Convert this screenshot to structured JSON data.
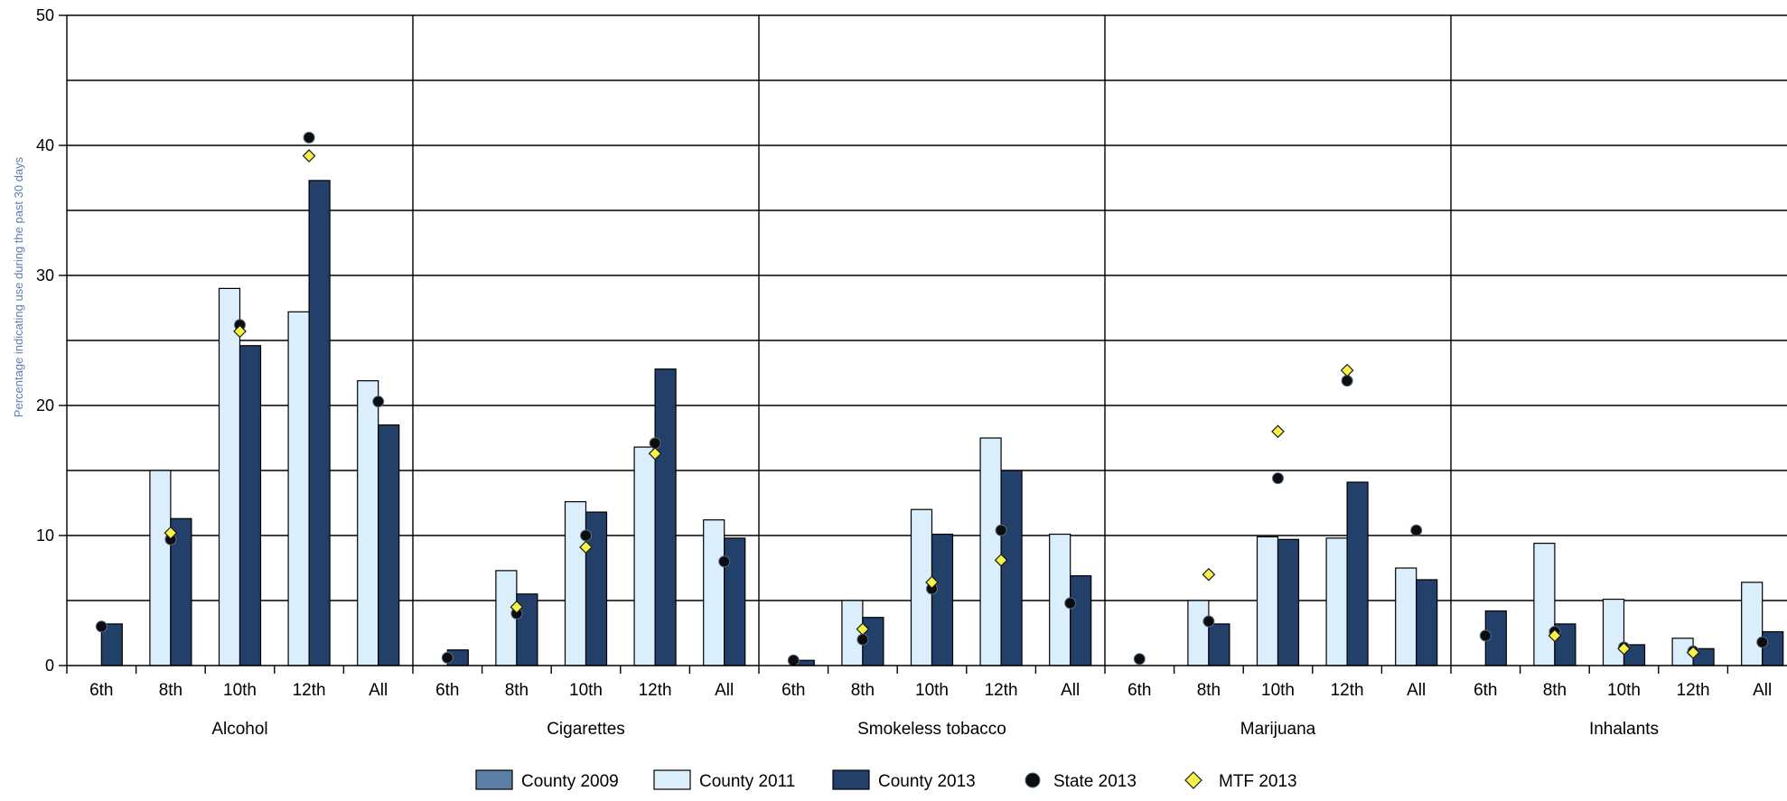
{
  "colors": {
    "county_2009": "#5b7fa6",
    "county_2011": "#dbeefb",
    "county_2013": "#22406a",
    "state_2013": "#0d0d0d",
    "mtf_2013": "#f7f24a",
    "ylabel": "#5b7fb5",
    "grid": "#000000"
  },
  "chart_data": {
    "type": "bar",
    "ylabel": "Percentage indicating use during the past 30 days",
    "ylim": [
      0,
      50
    ],
    "yticks": [
      0,
      10,
      20,
      30,
      40,
      50
    ],
    "minor_gridlines": [
      5,
      15,
      25,
      35,
      45
    ],
    "grid": true,
    "legend_position": "bottom-center",
    "grade_labels": [
      "6th",
      "8th",
      "10th",
      "12th",
      "All"
    ],
    "groups": [
      {
        "name": "Alcohol",
        "county_2011": [
          null,
          15.0,
          29.0,
          27.2,
          21.9
        ],
        "county_2013": [
          3.2,
          11.3,
          24.6,
          37.3,
          18.5
        ],
        "state_2013": [
          3.0,
          9.7,
          26.2,
          40.6,
          20.3
        ],
        "mtf_2013": [
          null,
          10.2,
          25.7,
          39.2,
          null
        ]
      },
      {
        "name": "Cigarettes",
        "county_2011": [
          null,
          7.3,
          12.6,
          16.8,
          11.2
        ],
        "county_2013": [
          1.2,
          5.5,
          11.8,
          22.8,
          9.8
        ],
        "state_2013": [
          0.6,
          4.0,
          10.0,
          17.1,
          8.0
        ],
        "mtf_2013": [
          null,
          4.5,
          9.1,
          16.3,
          null
        ]
      },
      {
        "name": "Smokeless tobacco",
        "county_2011": [
          null,
          5.0,
          12.0,
          17.5,
          10.1
        ],
        "county_2013": [
          0.4,
          3.7,
          10.1,
          15.0,
          6.9
        ],
        "state_2013": [
          0.4,
          2.0,
          5.9,
          10.4,
          4.8
        ],
        "mtf_2013": [
          null,
          2.8,
          6.4,
          8.1,
          null
        ]
      },
      {
        "name": "Marijuana",
        "county_2011": [
          null,
          5.0,
          9.9,
          9.8,
          7.5
        ],
        "county_2013": [
          null,
          3.2,
          9.7,
          14.1,
          6.6
        ],
        "state_2013": [
          0.5,
          3.4,
          14.4,
          21.9,
          10.4
        ],
        "mtf_2013": [
          null,
          7.0,
          18.0,
          22.7,
          null
        ]
      },
      {
        "name": "Inhalants",
        "county_2011": [
          null,
          9.4,
          5.1,
          2.1,
          6.4
        ],
        "county_2013": [
          4.2,
          3.2,
          1.6,
          1.3,
          2.6
        ],
        "state_2013": [
          2.3,
          2.6,
          1.4,
          1.1,
          1.8
        ],
        "mtf_2013": [
          null,
          2.3,
          1.3,
          1.0,
          null
        ]
      }
    ],
    "legend": [
      "County 2009",
      "County 2011",
      "County 2013",
      "State 2013",
      "MTF 2013"
    ]
  }
}
